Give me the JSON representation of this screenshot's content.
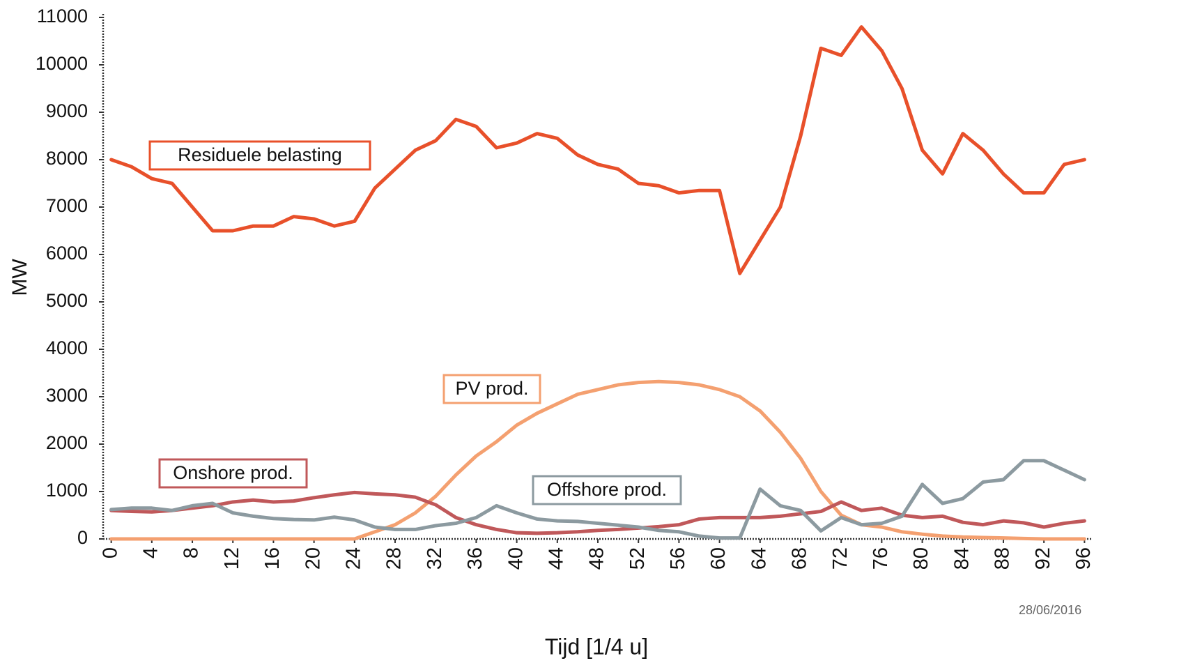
{
  "chart_data": {
    "type": "line",
    "y_label": "MW",
    "x_label": "Tijd [1/4 u]",
    "date": "28/06/2016",
    "x": [
      0,
      2,
      4,
      6,
      8,
      10,
      12,
      14,
      16,
      18,
      20,
      22,
      24,
      26,
      28,
      30,
      32,
      34,
      36,
      38,
      40,
      42,
      44,
      46,
      48,
      50,
      52,
      54,
      56,
      58,
      60,
      62,
      64,
      66,
      68,
      70,
      72,
      74,
      76,
      78,
      80,
      82,
      84,
      86,
      88,
      90,
      92,
      94,
      96
    ],
    "series": [
      {
        "name": "Residuele belasting",
        "color": "#e8502a",
        "values": [
          8000,
          7850,
          7600,
          7500,
          7000,
          6500,
          6500,
          6600,
          6600,
          6800,
          6750,
          6600,
          6700,
          7400,
          7800,
          8200,
          8400,
          8850,
          8700,
          8250,
          8350,
          8550,
          8450,
          8100,
          7900,
          7800,
          7500,
          7450,
          7300,
          7350,
          7350,
          5600,
          6300,
          7000,
          8500,
          10350,
          10200,
          10800,
          10300,
          9500,
          8200,
          7700,
          8550,
          8200,
          7700,
          7300,
          7300,
          7900,
          8000
        ]
      },
      {
        "name": "PV prod.",
        "color": "#f4a070",
        "values": [
          0,
          0,
          0,
          0,
          0,
          0,
          0,
          0,
          0,
          0,
          0,
          0,
          0,
          150,
          300,
          550,
          900,
          1350,
          1750,
          2050,
          2400,
          2650,
          2850,
          3050,
          3150,
          3250,
          3300,
          3320,
          3300,
          3250,
          3150,
          3000,
          2700,
          2250,
          1700,
          1000,
          500,
          300,
          250,
          150,
          100,
          60,
          40,
          30,
          20,
          10,
          0,
          0,
          0
        ]
      },
      {
        "name": "Onshore prod.",
        "color": "#c0585a",
        "values": [
          600,
          580,
          570,
          600,
          650,
          700,
          780,
          820,
          780,
          800,
          870,
          930,
          980,
          950,
          930,
          880,
          720,
          450,
          300,
          200,
          130,
          120,
          130,
          150,
          180,
          200,
          230,
          260,
          300,
          420,
          450,
          450,
          450,
          480,
          530,
          580,
          780,
          600,
          650,
          500,
          450,
          480,
          350,
          300,
          380,
          340,
          250,
          330,
          380
        ]
      },
      {
        "name": "Offshore prod.",
        "color": "#8c9aa0",
        "values": [
          620,
          650,
          650,
          600,
          700,
          750,
          550,
          480,
          430,
          410,
          400,
          460,
          400,
          250,
          200,
          200,
          280,
          330,
          450,
          700,
          550,
          420,
          380,
          370,
          330,
          290,
          250,
          180,
          150,
          60,
          20,
          20,
          1050,
          700,
          600,
          170,
          450,
          300,
          330,
          480,
          1150,
          750,
          850,
          1200,
          1250,
          1650,
          1650,
          1450,
          1250
        ]
      }
    ],
    "xlim": [
      -0.8,
      96.8
    ],
    "ylim": [
      0,
      11000
    ],
    "xticks": [
      0,
      4,
      8,
      12,
      16,
      20,
      24,
      28,
      32,
      36,
      40,
      44,
      48,
      52,
      56,
      60,
      64,
      68,
      72,
      76,
      80,
      84,
      88,
      92,
      96
    ],
    "yticks": [
      0,
      1000,
      2000,
      3000,
      4000,
      5000,
      6000,
      7000,
      8000,
      9000,
      10000,
      11000
    ]
  }
}
